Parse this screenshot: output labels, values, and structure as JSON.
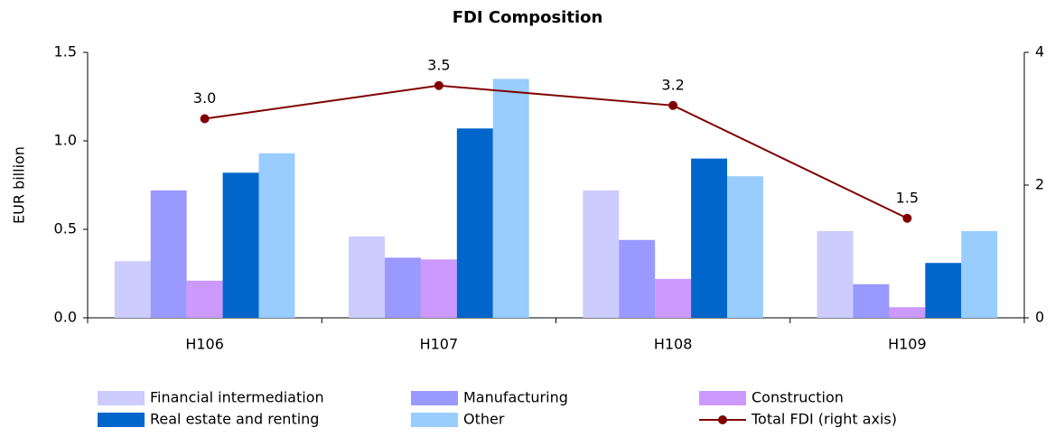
{
  "chart_data": {
    "type": "bar",
    "title": "FDI Composition",
    "ylabel": "EUR billion",
    "categories": [
      "H106",
      "H107",
      "H108",
      "H109"
    ],
    "series": [
      {
        "name": "Financial intermediation",
        "color": "#ccccff",
        "values": [
          0.32,
          0.46,
          0.72,
          0.49
        ]
      },
      {
        "name": "Manufacturing",
        "color": "#9999ff",
        "values": [
          0.72,
          0.34,
          0.44,
          0.19
        ]
      },
      {
        "name": "Construction",
        "color": "#cc99ff",
        "values": [
          0.21,
          0.33,
          0.22,
          0.06
        ]
      },
      {
        "name": "Real estate and renting",
        "color": "#0066cc",
        "values": [
          0.82,
          1.07,
          0.9,
          0.31
        ]
      },
      {
        "name": "Other",
        "color": "#99ccff",
        "values": [
          0.93,
          1.35,
          0.8,
          0.49
        ]
      },
      {
        "name": "Total FDI (right axis)",
        "color": "#800000",
        "type": "line",
        "axis": "y2",
        "values": [
          3.0,
          3.5,
          3.2,
          1.5
        ],
        "value_labels": [
          "3.0",
          "3.5",
          "3.2",
          "1.5"
        ]
      }
    ],
    "ylim": [
      0,
      1.5
    ],
    "yticks": [
      {
        "value": 0,
        "label": "0.0"
      },
      {
        "value": 0.5,
        "label": "0.5"
      },
      {
        "value": 1.0,
        "label": "1.0"
      },
      {
        "value": 1.5,
        "label": "1.5"
      }
    ],
    "y2lim": [
      0,
      4
    ],
    "y2ticks": [
      0,
      2,
      4
    ],
    "grid": false,
    "legend": "bottom"
  }
}
